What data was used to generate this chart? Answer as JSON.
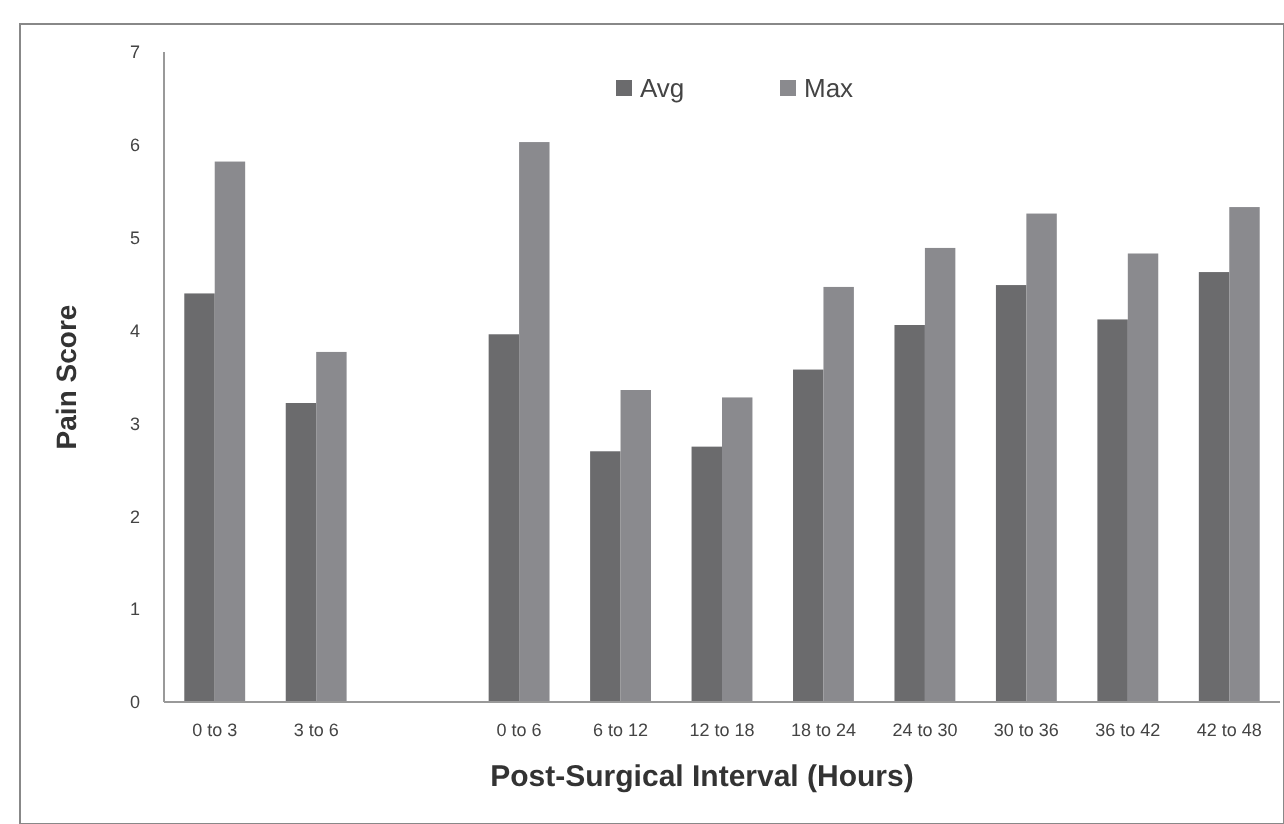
{
  "chart_data": {
    "type": "bar",
    "xlabel": "Post-Surgical Interval (Hours)",
    "ylabel": "Pain Score",
    "categories": [
      "0 to 3",
      "3 to 6",
      null,
      "0 to 6",
      "6 to 12",
      "12 to 18",
      "18 to 24",
      "24 to 30",
      "30 to 36",
      "36 to 42",
      "42 to 48"
    ],
    "series": [
      {
        "name": "Avg",
        "color": "#6b6b6d",
        "values": [
          4.4,
          3.22,
          null,
          3.96,
          2.7,
          2.75,
          3.58,
          4.06,
          4.49,
          4.12,
          4.63
        ]
      },
      {
        "name": "Max",
        "color": "#8a8a8e",
        "values": [
          5.82,
          3.77,
          null,
          6.03,
          3.36,
          3.28,
          4.47,
          4.89,
          5.26,
          4.83,
          5.33
        ]
      }
    ],
    "ylim": [
      0,
      7
    ],
    "yticks": [
      0,
      1,
      2,
      3,
      4,
      5,
      6,
      7
    ],
    "grid": false,
    "legend": "top"
  }
}
